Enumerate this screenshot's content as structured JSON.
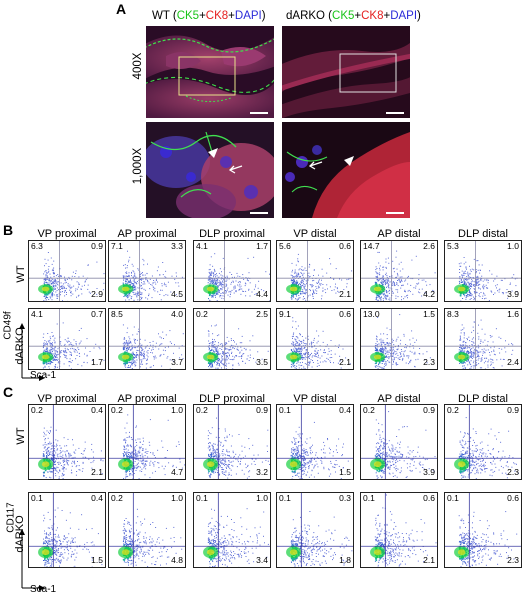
{
  "panelA": {
    "label": "A",
    "wt_title_prefix": "WT (",
    "dark_title_prefix": "dARKO (",
    "ck5": "CK5",
    "plus1": "+",
    "ck8": "CK8",
    "plus2": "+",
    "dapi": "DAPI",
    "close": ")",
    "mag_top": "400X",
    "mag_bottom": "1,000X"
  },
  "panelB": {
    "label": "B",
    "columns": [
      "VP proximal",
      "AP proximal",
      "DLP proximal",
      "VP distal",
      "AP distal",
      "DLP distal"
    ],
    "rows": [
      {
        "name": "WT",
        "quadrants": [
          {
            "ul": "6.3",
            "ur": "0.9",
            "lr": "2.9"
          },
          {
            "ul": "7.1",
            "ur": "3.3",
            "lr": "4.5"
          },
          {
            "ul": "4.1",
            "ur": "1.7",
            "lr": "4.4"
          },
          {
            "ul": "5.6",
            "ur": "0.6",
            "lr": "2.1"
          },
          {
            "ul": "14.7",
            "ur": "2.6",
            "lr": "4.2"
          },
          {
            "ul": "5.3",
            "ur": "1.0",
            "lr": "3.9"
          }
        ]
      },
      {
        "name": "dARKO",
        "quadrants": [
          {
            "ul": "4.1",
            "ur": "0.7",
            "lr": "1.7"
          },
          {
            "ul": "8.5",
            "ur": "4.0",
            "lr": "3.7"
          },
          {
            "ul": "0.2",
            "ur": "2.5",
            "lr": "3.5"
          },
          {
            "ul": "9.1",
            "ur": "0.6",
            "lr": "2.1"
          },
          {
            "ul": "13.0",
            "ur": "1.5",
            "lr": "2.3"
          },
          {
            "ul": "8.3",
            "ur": "1.6",
            "lr": "2.4"
          }
        ]
      }
    ],
    "y_axis": "CD49f",
    "x_axis": "Sca-1"
  },
  "panelC": {
    "label": "C",
    "columns": [
      "VP proximal",
      "AP proximal",
      "DLP proximal",
      "VP distal",
      "AP distal",
      "DLP distal"
    ],
    "rows": [
      {
        "name": "WT",
        "quadrants": [
          {
            "ul": "0.2",
            "ur": "0.4",
            "lr": "2.1"
          },
          {
            "ul": "0.2",
            "ur": "1.0",
            "lr": "4.7"
          },
          {
            "ul": "0.2",
            "ur": "0.9",
            "lr": "3.2"
          },
          {
            "ul": "0.1",
            "ur": "0.4",
            "lr": "1.5"
          },
          {
            "ul": "0.2",
            "ur": "0.9",
            "lr": "3.9"
          },
          {
            "ul": "0.2",
            "ur": "0.9",
            "lr": "2.3"
          }
        ]
      },
      {
        "name": "dARKO",
        "quadrants": [
          {
            "ul": "0.1",
            "ur": "0.4",
            "lr": "1.5"
          },
          {
            "ul": "0.2",
            "ur": "1.0",
            "lr": "4.8"
          },
          {
            "ul": "0.1",
            "ur": "1.0",
            "lr": "3.4"
          },
          {
            "ul": "0.1",
            "ur": "0.3",
            "lr": "1.8"
          },
          {
            "ul": "0.1",
            "ur": "0.6",
            "lr": "2.1"
          },
          {
            "ul": "0.1",
            "ur": "0.6",
            "lr": "2.3"
          }
        ]
      }
    ],
    "y_axis": "CD117",
    "x_axis": "Sca-1"
  },
  "colors": {
    "ck5": "#19c419",
    "ck8": "#e52020",
    "dapi": "#2a2ad8",
    "gate_b": "#8a8aa8",
    "gate_c": "#3a3aa0"
  }
}
